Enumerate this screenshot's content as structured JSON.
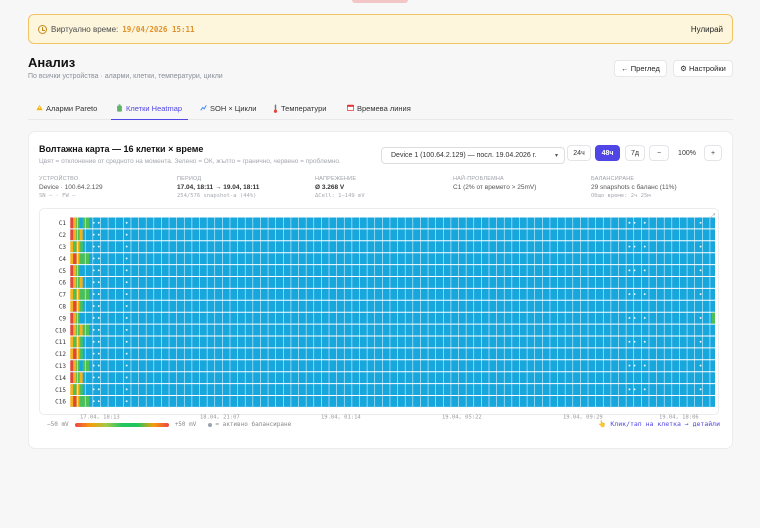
{
  "banner": {
    "label": "Виртуално време:",
    "value": "19/04/2026 15:11",
    "reset_label": "Нулирай"
  },
  "header": {
    "title": "Анализ",
    "subtitle": "По всички устройства · аларми, клетки, температури, цикли",
    "overview_label": "← Преглед",
    "settings_label": "⚙ Настройки"
  },
  "tabs": [
    {
      "label": "Аларми Pareto",
      "icon": "warning-icon"
    },
    {
      "label": "Клетки Heatmap",
      "icon": "battery-icon"
    },
    {
      "label": "SOH × Цикли",
      "icon": "chart-icon"
    },
    {
      "label": "Температури",
      "icon": "thermometer-icon"
    },
    {
      "label": "Времева линия",
      "icon": "calendar-icon"
    }
  ],
  "card": {
    "title": "Волтажна карта — 16 клетки × време",
    "description": "Цвят = отклонение от средното на момента. Зелено = ОК, жълто = гранично, червено = проблемно.",
    "device_select": "Device 1 (100.64.2.129) — посл. 19.04.2026 г.",
    "range_24": "24ч",
    "range_48": "48ч",
    "range_7d": "7д",
    "zoom_out": "−",
    "zoom_level": "100%",
    "zoom_in": "+"
  },
  "stats": {
    "device": {
      "k": "УСТРОЙСТВО",
      "v": "Device · 100.64.2.129",
      "s": "SN — · FW —"
    },
    "period": {
      "k": "ПЕРИОД",
      "v": "17.04, 18:11 → 19.04, 18:11",
      "s": "254/576 snapshot-а (44%)"
    },
    "voltage": {
      "k": "НАПРЕЖЕНИЕ",
      "v": "Ø 3.268 V",
      "s": "ΔCell: 1–149 mV"
    },
    "worst": {
      "k": "НАЙ-ПРОБЛЕМНА",
      "v": "C1 (2% от времето > 25mV)"
    },
    "balancing": {
      "k": "БАЛАНСИРАНЕ",
      "v": "29 snapshots с баланс (11%)",
      "s": "Общо време: 2ч 25м"
    }
  },
  "heatmap": {
    "rows": [
      "C1",
      "C2",
      "C3",
      "C4",
      "C5",
      "C6",
      "C7",
      "C8",
      "C9",
      "C10",
      "C11",
      "C12",
      "C13",
      "C14",
      "C15",
      "C16"
    ],
    "x_ticks": [
      "17.04, 18:13",
      "18.04, 21:07",
      "19.04, 01:14",
      "19.04, 05:22",
      "19.04, 09:29",
      "19.04, 18:06"
    ],
    "columns": 254,
    "colors": {
      "ok": "#18a7dd",
      "warn": "#f5b21c",
      "bad": "#e2453c",
      "good": "#4cbf55"
    }
  },
  "legend": {
    "min": "−50 mV",
    "max": "+50 mV",
    "balancing": "= активно балансиране"
  },
  "hint": "👆 Клик/тап на клетка → детайли"
}
